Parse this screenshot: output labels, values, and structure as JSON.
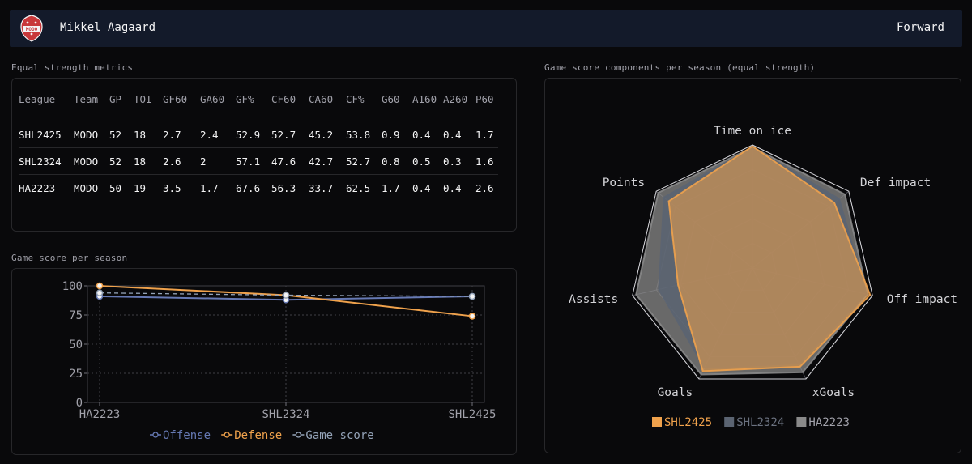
{
  "header": {
    "player_name": "Mikkel Aagaard",
    "position": "Forward",
    "logo_text": "MODO"
  },
  "metrics_section": {
    "title": "Equal strength metrics",
    "columns": [
      "League",
      "Team",
      "GP",
      "TOI",
      "GF60",
      "GA60",
      "GF%",
      "CF60",
      "CA60",
      "CF%",
      "G60",
      "A160",
      "A260",
      "P60"
    ],
    "rows": [
      [
        "SHL2425",
        "MODO",
        "52",
        "18",
        "2.7",
        "2.4",
        "52.9",
        "52.7",
        "45.2",
        "53.8",
        "0.9",
        "0.4",
        "0.4",
        "1.7"
      ],
      [
        "SHL2324",
        "MODO",
        "52",
        "18",
        "2.6",
        "2",
        "57.1",
        "47.6",
        "42.7",
        "52.7",
        "0.8",
        "0.5",
        "0.3",
        "1.6"
      ],
      [
        "HA2223",
        "MODO",
        "50",
        "19",
        "3.5",
        "1.7",
        "67.6",
        "56.3",
        "33.7",
        "62.5",
        "1.7",
        "0.4",
        "0.4",
        "2.6"
      ]
    ]
  },
  "line_section": {
    "title": "Game score per season"
  },
  "radar_section": {
    "title": "Game score components per season (equal strength)"
  },
  "colors": {
    "offense": "#6679b4",
    "defense": "#f0a24c",
    "game_score": "#94a3b8",
    "sh2425": "#f0a24c",
    "shl2324": "#5b6472",
    "ha2223": "#8a8a8a"
  },
  "chart_data": [
    {
      "type": "line",
      "categories": [
        "HA2223",
        "SHL2324",
        "SHL2425"
      ],
      "ylim": [
        0,
        100
      ],
      "yticks": [
        0,
        25,
        50,
        75,
        100
      ],
      "series": [
        {
          "name": "Offense",
          "values": [
            91,
            88,
            91
          ],
          "color": "#6679b4"
        },
        {
          "name": "Defense",
          "values": [
            100,
            92,
            74
          ],
          "color": "#f0a24c"
        },
        {
          "name": "Game score",
          "values": [
            94,
            92,
            91
          ],
          "color": "#94a3b8"
        }
      ],
      "legend_position": "bottom"
    },
    {
      "type": "radar",
      "axes": [
        "Time on ice",
        "Def impact",
        "Off impact",
        "xGoals",
        "Goals",
        "Assists",
        "Points"
      ],
      "range": [
        0,
        100
      ],
      "series": [
        {
          "name": "HA2223",
          "values": [
            98,
            96,
            96,
            94,
            96,
            97,
            98
          ],
          "color": "#8a8a8a"
        },
        {
          "name": "SHL2324",
          "values": [
            98,
            90,
            95,
            86,
            90,
            78,
            92
          ],
          "color": "#5b6472"
        },
        {
          "name": "SHL2425",
          "values": [
            99,
            85,
            98,
            89,
            93,
            62,
            87
          ],
          "color": "#f0a24c"
        }
      ],
      "legend_position": "bottom"
    }
  ]
}
